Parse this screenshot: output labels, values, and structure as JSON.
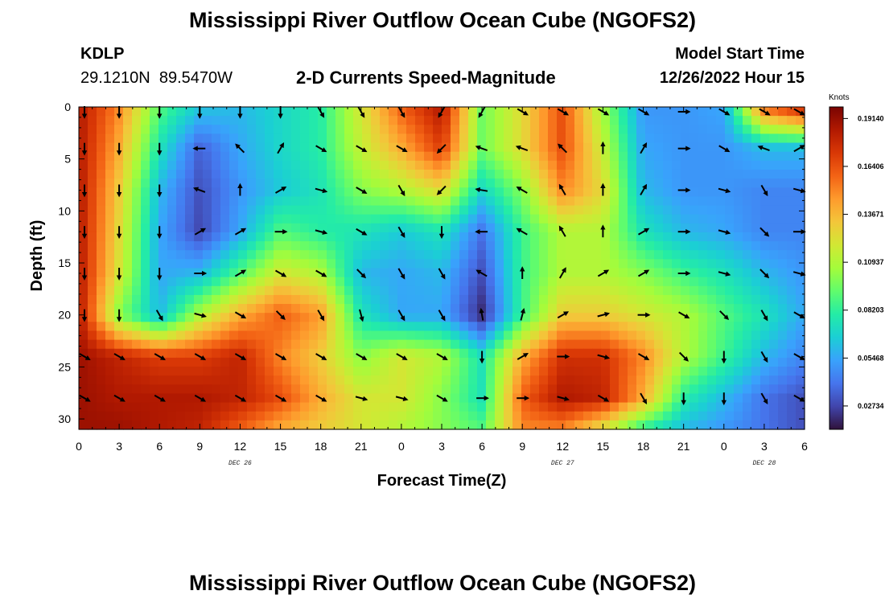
{
  "page": {
    "title": "Mississippi River Outflow Ocean Cube (NGOFS2)",
    "station_id": "KDLP",
    "station_coords": "29.1210N  89.5470W",
    "subtitle": "2-D Currents Speed-Magnitude",
    "model_start_label": "Model Start Time",
    "model_start_value": "12/26/2022 Hour 15",
    "bottom_title": "Mississippi River Outflow Ocean Cube (NGOFS2)"
  },
  "chart_data": {
    "type": "heatmap",
    "title": "2-D Currents Speed-Magnitude",
    "xlabel": "Forecast Time(Z)",
    "ylabel": "Depth (ft)",
    "x_tick_labels": [
      "0",
      "3",
      "6",
      "9",
      "12",
      "15",
      "18",
      "21",
      "0",
      "3",
      "6",
      "9",
      "12",
      "15",
      "18",
      "21",
      "0",
      "3",
      "6"
    ],
    "x_range_hours": [
      0,
      54
    ],
    "date_labels": [
      {
        "label": "DEC 26",
        "hour": 12
      },
      {
        "label": "DEC 27",
        "hour": 36
      },
      {
        "label": "DEC 28",
        "hour": 51
      }
    ],
    "y_tick_labels": [
      "0",
      "5",
      "10",
      "15",
      "20",
      "25",
      "30"
    ],
    "y_range_ft": [
      0,
      31
    ],
    "y_inverted": true,
    "colorbar": {
      "unit": "Knots",
      "tick_labels": [
        "0.19140",
        "0.16406",
        "0.13671",
        "0.10937",
        "0.08203",
        "0.05468",
        "0.02734"
      ],
      "range": [
        0.014,
        0.198
      ],
      "colormap": [
        "#30123b",
        "#4145ab",
        "#4675ed",
        "#39a2fc",
        "#1bcfd4",
        "#24eca6",
        "#61fc6c",
        "#a4fc3b",
        "#d1e834",
        "#f3c63a",
        "#fe9b2d",
        "#f36315",
        "#d93806",
        "#b11901",
        "#7a0402"
      ]
    },
    "z_hours": [
      0,
      3,
      6,
      9,
      12,
      15,
      18,
      21,
      24,
      27,
      30,
      33,
      36,
      39,
      42,
      45,
      48,
      51,
      54
    ],
    "z_depths_ft": [
      0,
      4,
      8,
      12,
      16,
      20,
      24,
      28,
      31
    ],
    "speed_knots": [
      [
        0.185,
        0.15,
        0.09,
        0.065,
        0.06,
        0.07,
        0.08,
        0.12,
        0.16,
        0.185,
        0.095,
        0.125,
        0.165,
        0.105,
        0.05,
        0.05,
        0.055,
        0.16,
        0.185
      ],
      [
        0.185,
        0.14,
        0.075,
        0.035,
        0.055,
        0.07,
        0.08,
        0.115,
        0.14,
        0.17,
        0.095,
        0.125,
        0.165,
        0.115,
        0.055,
        0.05,
        0.05,
        0.06,
        0.06
      ],
      [
        0.185,
        0.13,
        0.06,
        0.03,
        0.05,
        0.065,
        0.075,
        0.1,
        0.11,
        0.125,
        0.07,
        0.1,
        0.15,
        0.125,
        0.06,
        0.05,
        0.05,
        0.045,
        0.045
      ],
      [
        0.185,
        0.125,
        0.055,
        0.028,
        0.055,
        0.09,
        0.08,
        0.075,
        0.065,
        0.075,
        0.04,
        0.085,
        0.11,
        0.11,
        0.075,
        0.06,
        0.055,
        0.045,
        0.045
      ],
      [
        0.185,
        0.12,
        0.055,
        0.06,
        0.09,
        0.12,
        0.11,
        0.06,
        0.055,
        0.06,
        0.03,
        0.085,
        0.11,
        0.11,
        0.1,
        0.085,
        0.075,
        0.06,
        0.05
      ],
      [
        0.185,
        0.1,
        0.06,
        0.11,
        0.14,
        0.16,
        0.145,
        0.075,
        0.055,
        0.055,
        0.02,
        0.085,
        0.13,
        0.13,
        0.12,
        0.11,
        0.09,
        0.075,
        0.055
      ],
      [
        0.19,
        0.18,
        0.17,
        0.17,
        0.18,
        0.15,
        0.13,
        0.1,
        0.12,
        0.11,
        0.075,
        0.14,
        0.175,
        0.175,
        0.15,
        0.11,
        0.085,
        0.06,
        0.045
      ],
      [
        0.19,
        0.185,
        0.185,
        0.185,
        0.18,
        0.165,
        0.14,
        0.12,
        0.12,
        0.1,
        0.075,
        0.16,
        0.185,
        0.18,
        0.14,
        0.08,
        0.06,
        0.04,
        0.03
      ],
      [
        0.19,
        0.19,
        0.185,
        0.18,
        0.16,
        0.14,
        0.13,
        0.12,
        0.11,
        0.1,
        0.09,
        0.15,
        0.15,
        0.12,
        0.08,
        0.06,
        0.05,
        0.04,
        0.03
      ]
    ],
    "vector_hours": [
      0,
      3,
      6,
      9,
      12,
      15,
      18,
      21,
      24,
      27,
      30,
      33,
      36,
      39,
      42,
      45,
      48,
      51,
      54
    ],
    "vector_depths_ft": [
      0,
      4,
      8,
      12,
      16,
      20,
      24,
      28
    ],
    "vector_direction_deg_from_east": [
      [
        -90,
        -90,
        -90,
        -90,
        -90,
        -90,
        -60,
        -60,
        -60,
        -120,
        -120,
        -30,
        -30,
        -30,
        -30,
        0,
        -30,
        -30,
        -30
      ],
      [
        -90,
        -90,
        -90,
        180,
        135,
        60,
        -30,
        -30,
        -30,
        -135,
        160,
        160,
        135,
        90,
        60,
        0,
        -30,
        160,
        30
      ],
      [
        -90,
        -90,
        -90,
        160,
        90,
        30,
        -15,
        -30,
        -60,
        -135,
        170,
        150,
        120,
        90,
        60,
        0,
        -15,
        -60,
        -15
      ],
      [
        -90,
        -90,
        -90,
        30,
        30,
        0,
        -15,
        -30,
        -60,
        -90,
        180,
        150,
        120,
        90,
        30,
        0,
        -15,
        -45,
        0
      ],
      [
        -90,
        -90,
        -90,
        0,
        30,
        -30,
        -30,
        -45,
        -60,
        -60,
        150,
        90,
        60,
        30,
        30,
        0,
        -15,
        -45,
        -15
      ],
      [
        -90,
        -90,
        -60,
        -15,
        -30,
        -45,
        -60,
        -75,
        -60,
        -60,
        100,
        75,
        30,
        15,
        0,
        -30,
        -45,
        -60,
        -30
      ],
      [
        -30,
        -30,
        -30,
        -30,
        -30,
        -30,
        -30,
        -30,
        -30,
        -30,
        -90,
        30,
        0,
        -15,
        -30,
        -45,
        -90,
        -60,
        -30
      ],
      [
        -30,
        -30,
        -30,
        -30,
        -30,
        -30,
        -30,
        -15,
        -15,
        -30,
        0,
        0,
        -15,
        -30,
        -60,
        -90,
        -90,
        -60,
        -30
      ]
    ]
  }
}
